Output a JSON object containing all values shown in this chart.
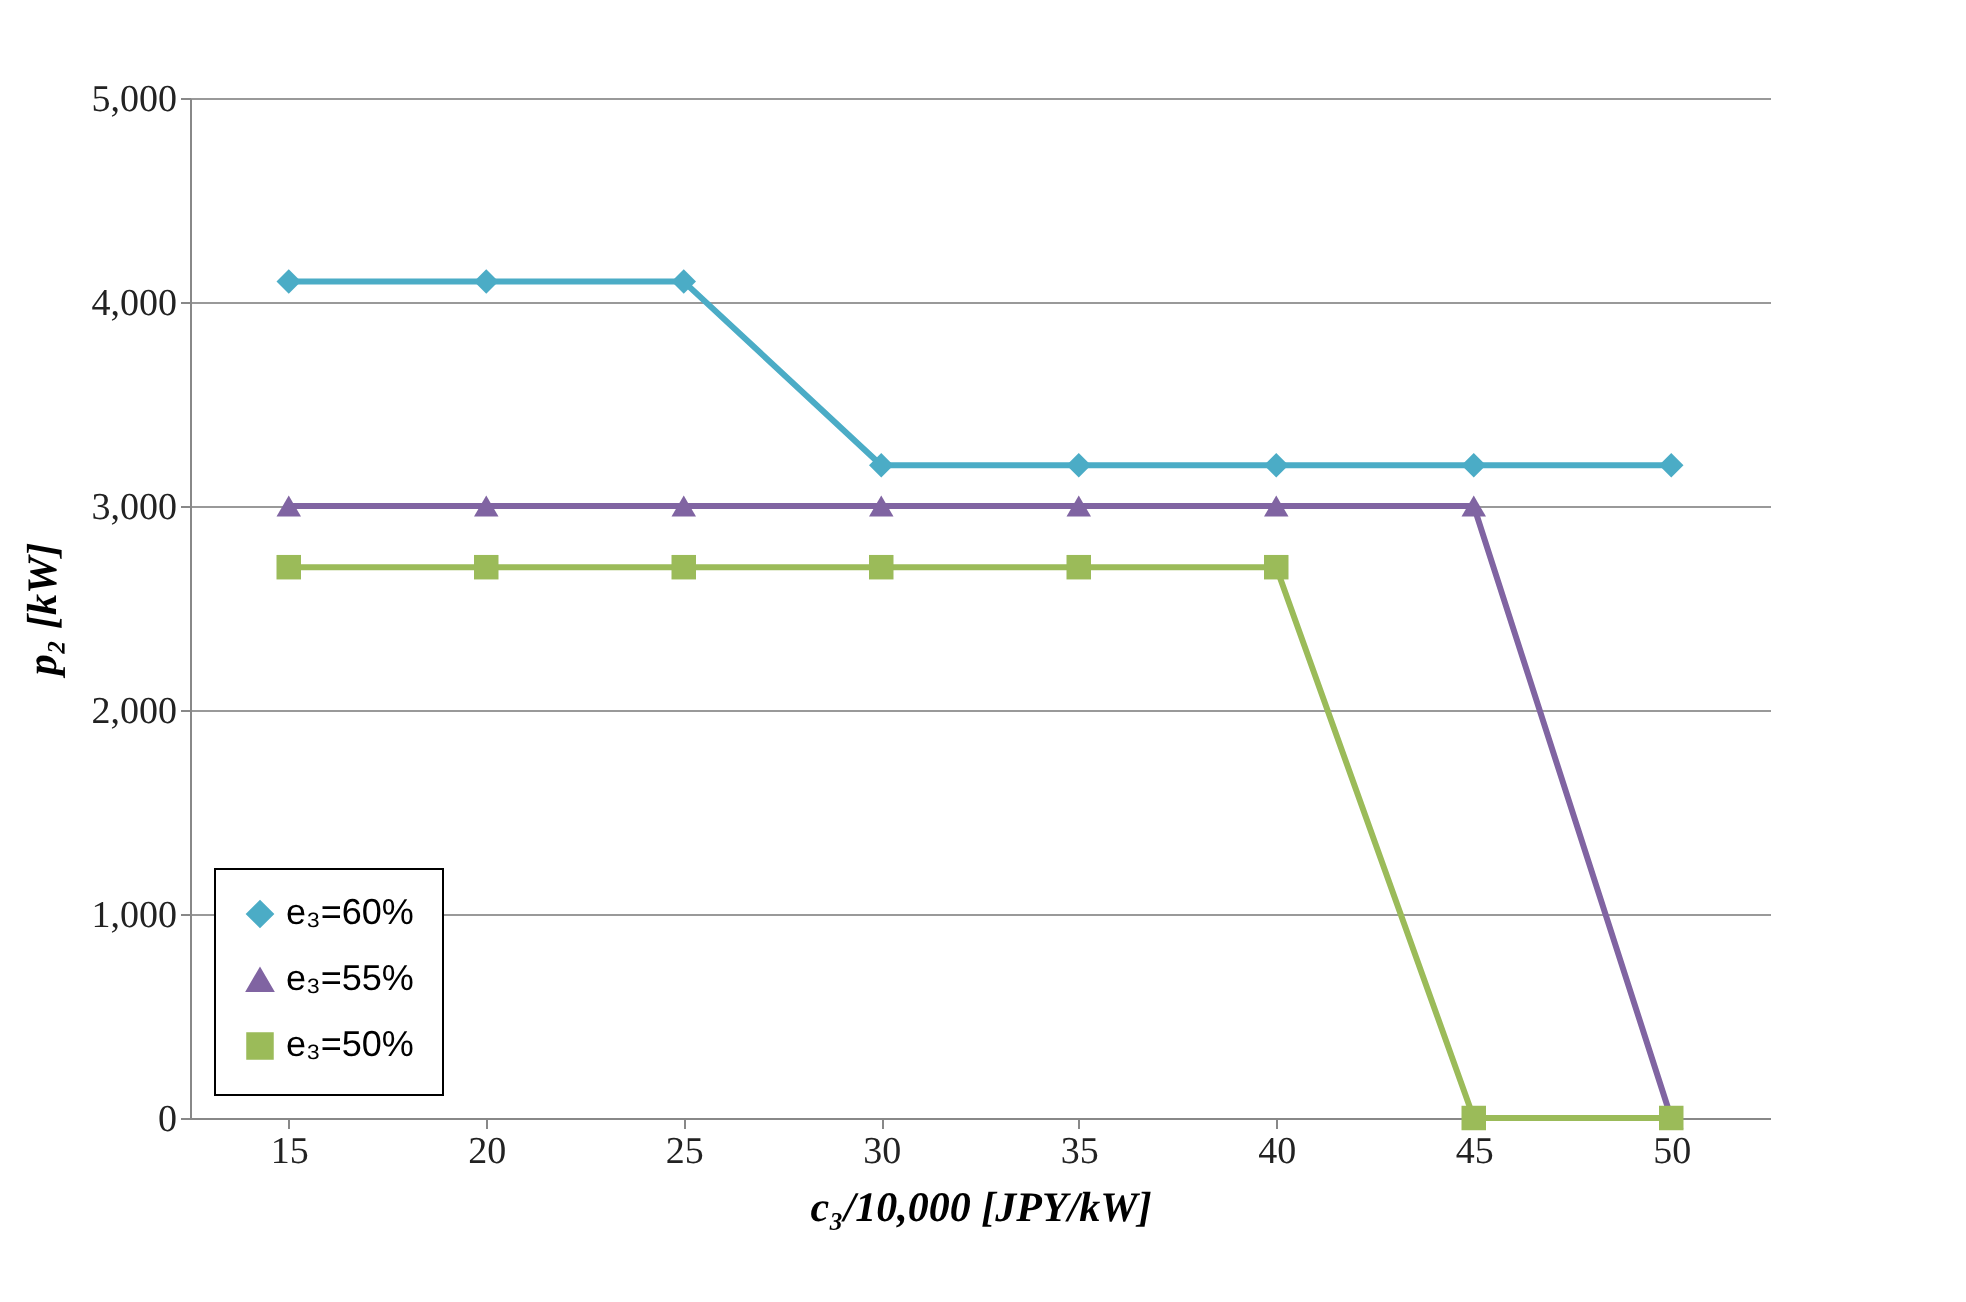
{
  "chart_data": {
    "type": "line",
    "xlabel": "c₃/10,000 [JPY/kW]",
    "ylabel": "p₂ [kW]",
    "categories": [
      "15",
      "20",
      "25",
      "30",
      "35",
      "40",
      "45",
      "50"
    ],
    "series": [
      {
        "name": "e₃=60%",
        "color": "#4bacc6",
        "marker": "diamond",
        "values": [
          4100,
          4100,
          4100,
          3200,
          3200,
          3200,
          3200,
          3200
        ]
      },
      {
        "name": "e₃=55%",
        "color": "#8064a2",
        "marker": "triangle",
        "values": [
          3000,
          3000,
          3000,
          3000,
          3000,
          3000,
          3000,
          0
        ]
      },
      {
        "name": "e₃=50%",
        "color": "#9bbb59",
        "marker": "square",
        "values": [
          2700,
          2700,
          2700,
          2700,
          2700,
          2700,
          0,
          0
        ]
      }
    ],
    "ylim": [
      0,
      5000
    ],
    "yticks": [
      {
        "value": 0,
        "label": "0"
      },
      {
        "value": 1000,
        "label": "1,000"
      },
      {
        "value": 2000,
        "label": "2,000"
      },
      {
        "value": 3000,
        "label": "3,000"
      },
      {
        "value": 4000,
        "label": "4,000"
      },
      {
        "value": 5000,
        "label": "5,000"
      }
    ],
    "grid": "y",
    "legend": "bottom left",
    "line_style": "solid"
  }
}
